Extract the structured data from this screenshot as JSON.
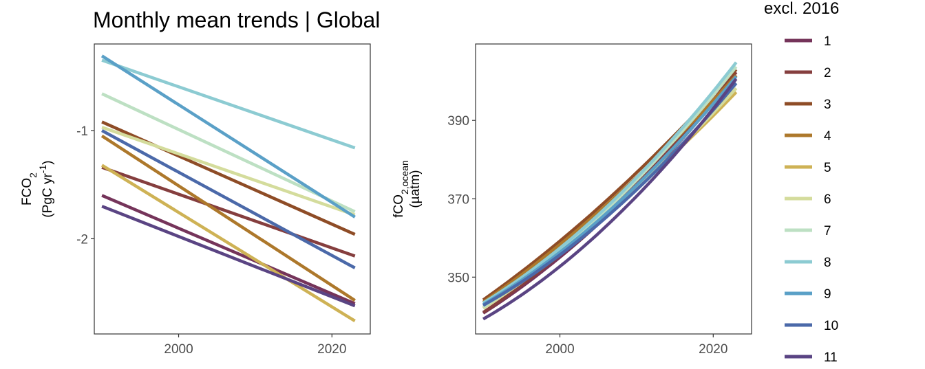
{
  "figure": {
    "title": "Monthly mean trends | Global",
    "legend_title": "excl. 2016"
  },
  "chart_data": [
    {
      "type": "line",
      "panel": "left",
      "ylabel_main": "FCO",
      "ylabel_sub": "2",
      "ylabel_unit_a": "(PgC yr",
      "ylabel_unit_sup": "-1",
      "ylabel_unit_b": ")",
      "xlim": [
        1989,
        2025
      ],
      "ylim": [
        -2.88,
        -0.2
      ],
      "xticks": [
        2000,
        2020
      ],
      "yticks": [
        -1,
        -2
      ],
      "x": [
        1990,
        2023
      ],
      "series": [
        {
          "name": "1",
          "color": "#75345A",
          "values": [
            -1.6,
            -2.6
          ]
        },
        {
          "name": "2",
          "color": "#853E3E",
          "values": [
            -1.34,
            -2.16
          ]
        },
        {
          "name": "3",
          "color": "#8E4C26",
          "values": [
            -0.92,
            -1.96
          ]
        },
        {
          "name": "4",
          "color": "#AD782B",
          "values": [
            -1.05,
            -2.57
          ]
        },
        {
          "name": "5",
          "color": "#CEB255",
          "values": [
            -1.32,
            -2.76
          ]
        },
        {
          "name": "6",
          "color": "#D4DC9C",
          "values": [
            -0.97,
            -1.78
          ]
        },
        {
          "name": "7",
          "color": "#BDE0C3",
          "values": [
            -0.66,
            -1.75
          ]
        },
        {
          "name": "8",
          "color": "#8CCBD2",
          "values": [
            -0.35,
            -1.16
          ]
        },
        {
          "name": "9",
          "color": "#5AA0C7",
          "values": [
            -0.31,
            -1.8
          ]
        },
        {
          "name": "10",
          "color": "#4B69A9",
          "values": [
            -1.0,
            -2.27
          ]
        },
        {
          "name": "11",
          "color": "#5A4483",
          "values": [
            -1.7,
            -2.62
          ]
        }
      ]
    },
    {
      "type": "line",
      "panel": "right",
      "ylabel_main": "fCO",
      "ylabel_sub": "2,ocean",
      "ylabel_unit": "(µatm)",
      "xlim": [
        1989,
        2025
      ],
      "ylim": [
        335.5,
        409.5
      ],
      "xticks": [
        2000,
        2020
      ],
      "yticks": [
        350,
        370,
        390
      ],
      "x": [
        1990,
        2023
      ],
      "series": [
        {
          "name": "1",
          "color": "#75345A",
          "start": 340.8,
          "end": 401.5,
          "slope_start": 1.25
        },
        {
          "name": "2",
          "color": "#853E3E",
          "start": 341.0,
          "end": 402.3,
          "slope_start": 1.3
        },
        {
          "name": "3",
          "color": "#8E4C26",
          "start": 344.2,
          "end": 403.0,
          "slope_start": 1.38
        },
        {
          "name": "4",
          "color": "#AD782B",
          "start": 343.6,
          "end": 401.5,
          "slope_start": 1.35
        },
        {
          "name": "5",
          "color": "#CEB255",
          "start": 342.3,
          "end": 397.2,
          "slope_start": 1.3
        },
        {
          "name": "6",
          "color": "#D4DC9C",
          "start": 342.0,
          "end": 398.2,
          "slope_start": 1.28
        },
        {
          "name": "7",
          "color": "#BDE0C3",
          "start": 342.4,
          "end": 403.7,
          "slope_start": 1.25
        },
        {
          "name": "8",
          "color": "#8CCBD2",
          "start": 343.4,
          "end": 404.8,
          "slope_start": 1.2
        },
        {
          "name": "9",
          "color": "#5AA0C7",
          "start": 343.0,
          "end": 401.2,
          "slope_start": 1.15
        },
        {
          "name": "10",
          "color": "#4B69A9",
          "start": 342.8,
          "end": 399.5,
          "slope_start": 1.1
        },
        {
          "name": "11",
          "color": "#5A4483",
          "start": 339.3,
          "end": 400.6,
          "slope_start": 1.12
        }
      ]
    }
  ]
}
